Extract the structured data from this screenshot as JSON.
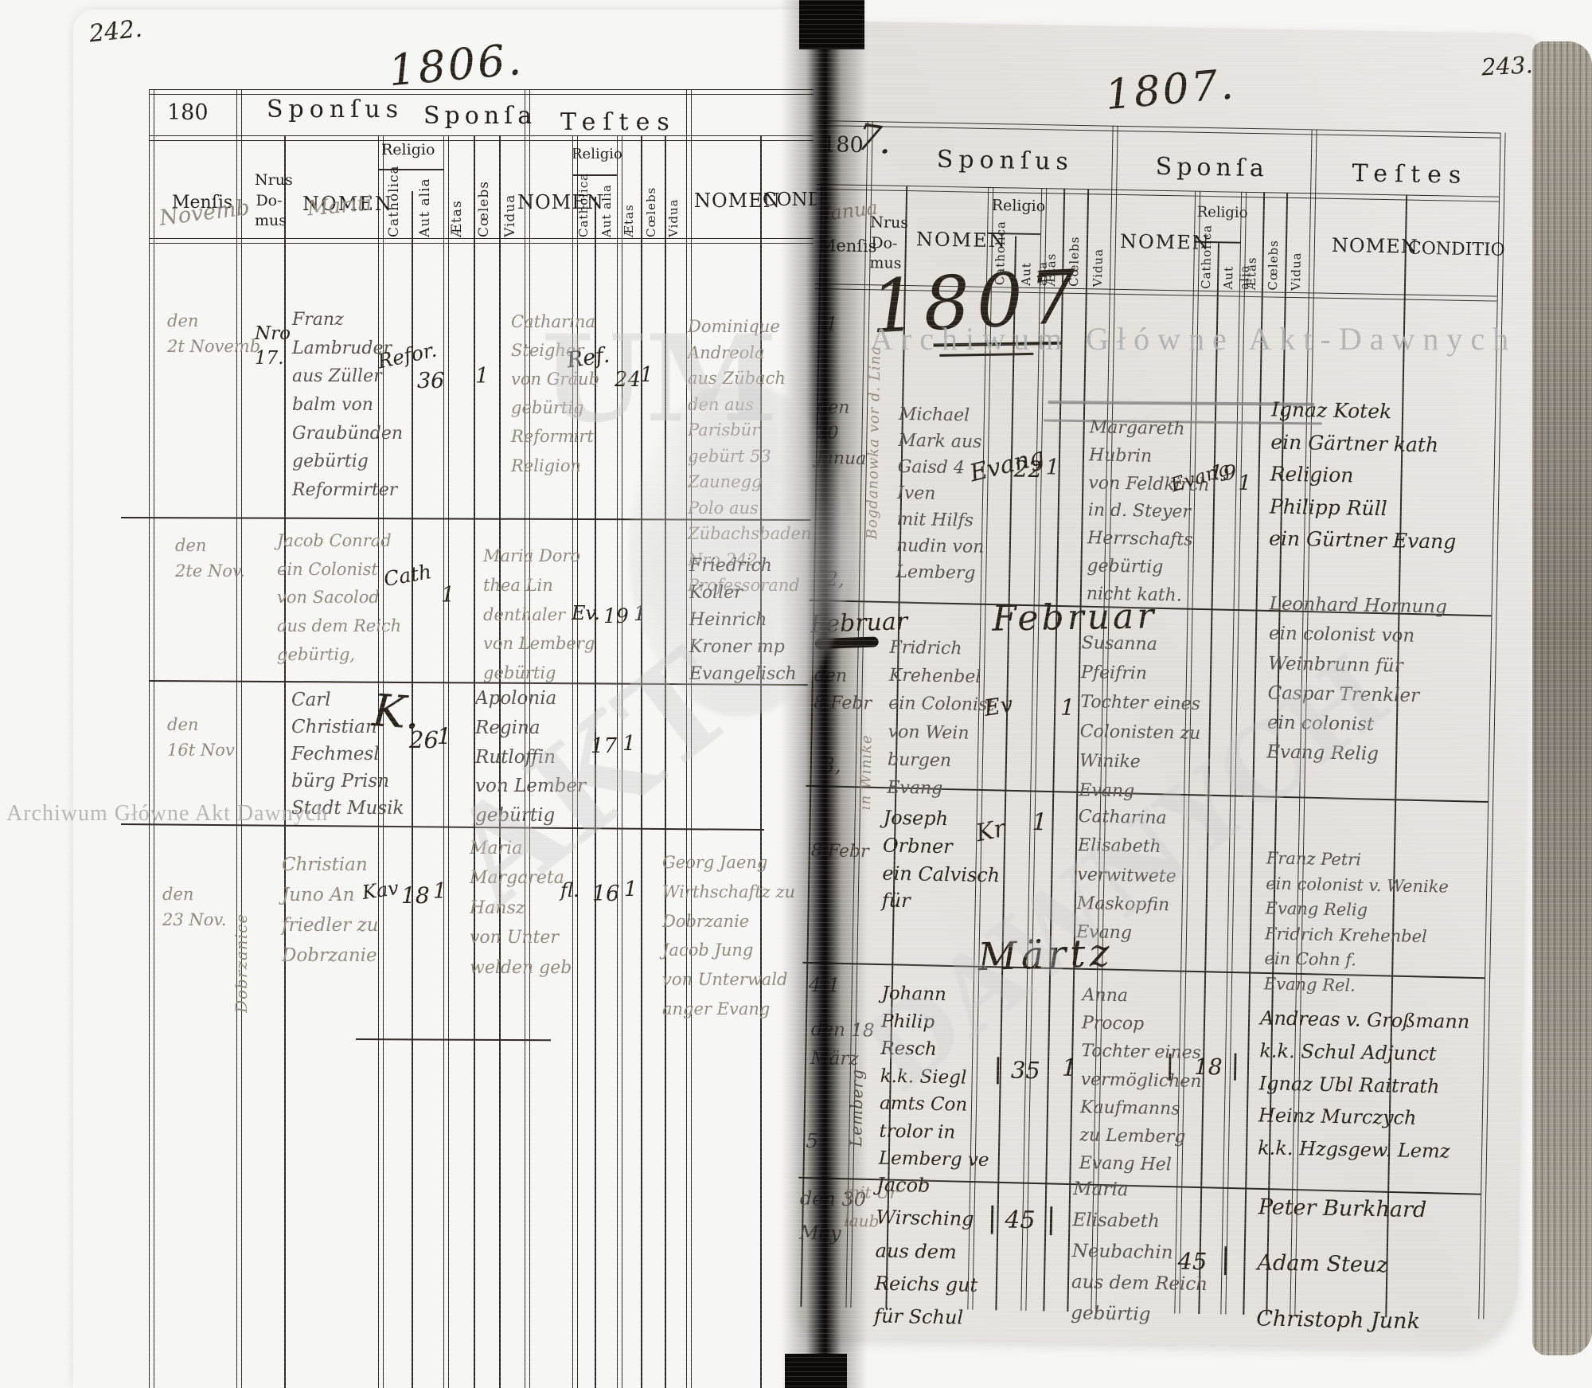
{
  "scan": {
    "watermark_top": "Archiwum Główne Akt-Dawnych",
    "watermark_bottom": "Archiwum Główne Akt Dawnych",
    "ghost": {
      "f1": "UM",
      "f2": "AKT",
      "f3": "DAWNYCH"
    }
  },
  "headers": {
    "corner_year_prefix": "180",
    "sponsus": "Sponſus",
    "sponsa": "Sponſa",
    "testes": "Teſtes",
    "mensis": "Menſis",
    "nrus_domus": "Nrus\nDo-\nmus",
    "nomen": "NOMEN",
    "religio": "Religio",
    "catholica": "Catholica",
    "aut_alia": "Aut alia",
    "aetas": "Ætas",
    "coelebs": "Cœlebs",
    "vidua": "Vidua",
    "cond": "COND",
    "conditio": "CONDITIO"
  },
  "left": {
    "page_number": "242.",
    "year": "1806.",
    "mensis_note": "Novemb",
    "nomen_note": "Mariti",
    "rows": [
      {
        "mensis": "den\n2t Novemb",
        "domus": "Nro\n17.",
        "sponsus": "Franz\nLambruder\naus Züller\nbalm von\nGraubünden\ngebürtig\nReformirter",
        "sp_religio": "Refor.",
        "sp_aetas": "36",
        "sp_mark": "1",
        "sponsa": "Catharina\nSteigher\nvon Gräub\ngebürtig\nReformirt\nReligion",
        "sa_religio": "Ref.",
        "sa_aetas": "24",
        "sa_mark": "1",
        "testes": "Dominique\nAndreola\naus Zübach\nden aus\nParisbür\ngebürt 53\nZaunegg\nPolo aus\nZübachsbaden\nNro 242\nProfessorand"
      },
      {
        "mensis": "den\n2te Nov.",
        "sponsus": "Jacob Conrad\nein Colonist\nvon Sacolod\naus dem Reich\ngebürtig,",
        "sp_religio": "Cath",
        "sp_mark": "1",
        "sponsa": "Maria Doro\nthea Lin\ndenthaler\nvon Lemberg\ngebürtig",
        "sa_religio": "Ev.",
        "sa_aetas": "19",
        "sa_mark": "1",
        "testes": "Friedrich Koller\nHeinrich\nKroner mp\nEvangelisch"
      },
      {
        "mensis": "den\n16t Nov",
        "sponsus": "Carl\nChristian\nFechmesl\nbürg Prisn\nStadt Musik",
        "sp_religio": "K.",
        "sp_aetas": "26",
        "sp_mark": "1",
        "sponsa": "Apolonia\nRegina\nRutloffin\nvon Lember\ngebürtig",
        "sa_aetas": "17",
        "sa_mark": "1"
      },
      {
        "mensis": "den\n23 Nov.",
        "side_note": "Dobrzanice",
        "sponsus": "Christian\nJuno An\nfriedler zu\nDobrzanie",
        "sp_religio": "Kav",
        "sp_aetas": "18",
        "sp_mark": "1",
        "sponsa": "Maria\nMargareta\nHansz\nvon Unter\nwelden geb",
        "sa_religio": "fl.",
        "sa_aetas": "16",
        "sa_mark": "1",
        "testes": "Georg Jaeng\nWirthschaftz zu\nDobrzanie\nJacob Jung\nvon Unterwald\nanger Evang"
      }
    ]
  },
  "right": {
    "page_number": "243.",
    "year": "1807.",
    "corner_note": "7.",
    "year_scrawl": "1807",
    "mensis_note": "Janua",
    "month_february_big": "Februar",
    "month_february_small": "Februar",
    "month_march": "Märtz",
    "rows": [
      {
        "nro": "1",
        "mensis": "den\n20\nJanua",
        "domus_note": "Bogdanowka vor d. Lina",
        "sponsus": "Michael\nMark aus\nGaisd 4\nIven\nmit Hilfs\nnudin von\nLemberg",
        "sp_religio": "Evang",
        "sp_aetas": "22",
        "sp_mark": "1",
        "sponsa": "Margareth\nHubrin\nvon Feldkirch\nin d. Steyer\nHerrschafts\ngebürtig\nnicht kath.",
        "sa_religio": "Evang",
        "sa_aetas": "19",
        "sa_mark": "1",
        "testes": "Ignaz Kotek\nein Gärtner kath\nReligion\nPhilipp Rüll\nein Gürtner Evang"
      },
      {
        "nro": "2,",
        "mensis": "den\n8 Febr",
        "domus_note": "in Winike",
        "sponsus": "Fridrich\nKrehenbel\nein Colonist\nvon Wein\nburgen\nEvang",
        "sp_religio": "Ev",
        "sp_mark": "1",
        "sponsa": "Susanna\nPfeifrin\nTochter eines\nColonisten zu\nWinike\nEvang",
        "testes": "Leonhard Hornung\nein colonist von\nWeinbrunn für\nCaspar Trenkler\nein colonist\nEvang Relig"
      },
      {
        "nro": "3,",
        "mensis": "8 Febr",
        "sponsus": "Joseph\nOrbner\nein Calvisch\nfür",
        "sp_religio": "Kr",
        "sp_mark": "1",
        "sponsa": "Catharina\nElisabeth\nverwitwete\nMaskopfin\nEvang",
        "testes": "Franz Petri\nein colonist v. Wenike\nEvang Relig\nFridrich Krehenbel\nein Cohn f.\nEvang Rel."
      },
      {
        "nro": "4 1",
        "mensis": "den 18\nMärz",
        "domus_note": "Lemberg",
        "sponsus": "Johann\nPhilip\nResch\nk.k. Siegl\namts Con\ntrolor in\nLemberg ve",
        "sp_mark_c": "|",
        "sp_aetas": "35",
        "sp_mark": "1",
        "sponsa": "Anna\nProcop\nTochter eines\nvermöglichen\nKaufmanns\nzu Lemberg\nEvang Hel",
        "sa_mark_c": "|",
        "sa_aetas": "18",
        "sa_mark": "|",
        "testes": "Andreas v. Großmann\nk.k. Schul Adjunct\nIgnaz Ubl Raitrath\nHeinz Murczych\nk.k. Hzgsgew. Lemz"
      },
      {
        "nro": "5",
        "mensis": "den 30\nMay",
        "domus_note": "mit Ur\nlaub",
        "sponsus": "Jacob\nWirsching\naus dem\nReichs gut\nfür Schul",
        "sp_mark_c": "|",
        "sp_aetas": "45",
        "sp_mark": "|",
        "sponsa": "Maria\nElisabeth\nNeubachin\naus dem Reich\ngebürtig",
        "sa_aetas": "45",
        "sa_mark": "|",
        "testes": "Peter Burkhard\nAdam Steuz\nChristoph Junk"
      }
    ]
  }
}
